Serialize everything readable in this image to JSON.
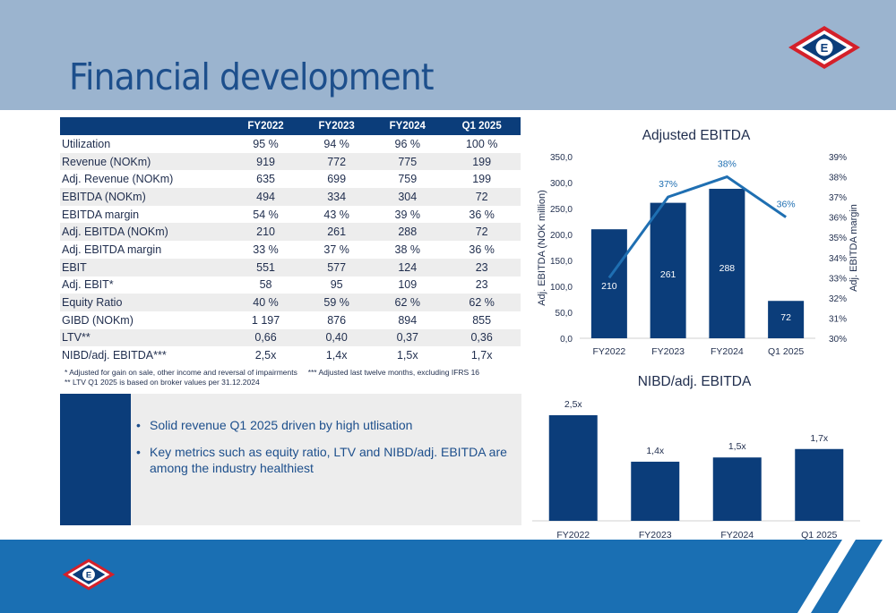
{
  "slide": {
    "title": "Financial development"
  },
  "table": {
    "columns": [
      "",
      "FY2022",
      "FY2023",
      "FY2024",
      "Q1 2025"
    ],
    "rows": [
      [
        "Utilization",
        "95 %",
        "94 %",
        "96 %",
        "100 %"
      ],
      [
        "Revenue (NOKm)",
        "919",
        "772",
        "775",
        "199"
      ],
      [
        "Adj. Revenue (NOKm)",
        "635",
        "699",
        "759",
        "199"
      ],
      [
        "EBITDA (NOKm)",
        "494",
        "334",
        "304",
        "72"
      ],
      [
        "EBITDA margin",
        "54 %",
        "43 %",
        "39 %",
        "36 %"
      ],
      [
        "Adj. EBITDA (NOKm)",
        "210",
        "261",
        "288",
        "72"
      ],
      [
        "Adj. EBITDA margin",
        "33 %",
        "37 %",
        "38 %",
        "36 %"
      ],
      [
        "EBIT",
        "551",
        "577",
        "124",
        "23"
      ],
      [
        "Adj. EBIT*",
        "58",
        "95",
        "109",
        "23"
      ],
      [
        "Equity Ratio",
        "40 %",
        "59 %",
        "62 %",
        "62 %"
      ],
      [
        "GIBD (NOKm)",
        "1 197",
        "876",
        "894",
        "855"
      ],
      [
        "LTV**",
        "0,66",
        "0,40",
        "0,37",
        "0,36"
      ],
      [
        "NIBD/adj. EBITDA***",
        "2,5x",
        "1,4x",
        "1,5x",
        "1,7x"
      ]
    ]
  },
  "footnotes": {
    "line1a": "* Adjusted for gain on sale, other income and reversal of impairments",
    "line1b": "*** Adjusted last twelve months, excluding IFRS 16",
    "line2": "** LTV Q1 2025 is based on broker values per 31.12.2024"
  },
  "bullets": [
    "Solid revenue Q1 2025 driven by high utlisation",
    "Key metrics such as equity ratio, LTV and NIBD/adj. EBITDA are among the industry healthiest"
  ],
  "colors": {
    "navy": "#0b3d7a",
    "line": "#1f6fb2",
    "header_bg": "#9bb4cf",
    "footer": "#1a6fb3",
    "shade": "#ededed"
  },
  "icons": {
    "logo": "company-diamond-logo"
  },
  "chart_data": [
    {
      "type": "bar",
      "title": "Adjusted EBITDA",
      "categories": [
        "FY2022",
        "FY2023",
        "FY2024",
        "Q1 2025"
      ],
      "series": [
        {
          "values": [
            210,
            261,
            288,
            72
          ],
          "labels": [
            "210",
            "261",
            "288",
            "72"
          ]
        },
        {
          "type": "line",
          "axis": "right",
          "values": [
            33,
            37,
            38,
            36
          ],
          "labels": [
            "",
            "37%",
            "38%",
            "36%"
          ]
        }
      ],
      "ylabel": "Adj. EBITDA (NOK million)",
      "y2label": "Adj. EBITDA margin",
      "ylim": [
        0,
        350
      ],
      "yticks": [
        "0,0",
        "50,0",
        "100,0",
        "150,0",
        "200,0",
        "250,0",
        "300,0",
        "350,0"
      ],
      "y2lim": [
        30,
        39
      ],
      "y2ticks": [
        "30%",
        "31%",
        "32%",
        "33%",
        "34%",
        "35%",
        "36%",
        "37%",
        "38%",
        "39%"
      ],
      "grid": false
    },
    {
      "type": "bar",
      "title": "NIBD/adj. EBITDA",
      "categories": [
        "FY2022",
        "FY2023",
        "FY2024",
        "Q1 2025"
      ],
      "values": [
        2.5,
        1.4,
        1.5,
        1.7
      ],
      "labels": [
        "2,5x",
        "1,4x",
        "1,5x",
        "1,7x"
      ],
      "grid": false
    }
  ]
}
